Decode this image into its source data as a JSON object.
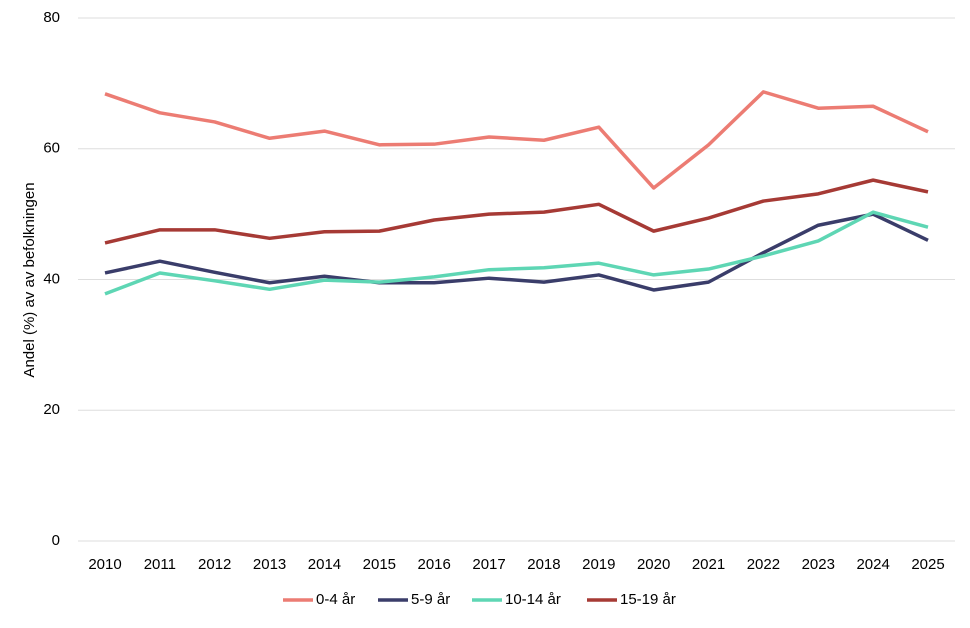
{
  "chart_data": {
    "type": "line",
    "y_label": "Andel (%) av av befolkningen",
    "categories": [
      "2010",
      "2011",
      "2012",
      "2013",
      "2014",
      "2015",
      "2016",
      "2017",
      "2018",
      "2019",
      "2020",
      "2021",
      "2022",
      "2023",
      "2024",
      "2025"
    ],
    "series": [
      {
        "name": "0-4 år",
        "color": "#ec7c73",
        "values": [
          68.4,
          65.5,
          64.1,
          61.6,
          62.7,
          60.6,
          60.7,
          61.8,
          61.3,
          63.3,
          54.0,
          60.6,
          68.7,
          66.2,
          66.5,
          62.6
        ]
      },
      {
        "name": "5-9 år",
        "color": "#3a3d6a",
        "values": [
          41.0,
          42.8,
          41.1,
          39.5,
          40.5,
          39.5,
          39.5,
          40.2,
          39.6,
          40.7,
          38.4,
          39.6,
          44.1,
          48.3,
          50.0,
          46.0
        ]
      },
      {
        "name": "10-14 år",
        "color": "#5ed6b4",
        "values": [
          37.8,
          41.0,
          39.8,
          38.5,
          39.9,
          39.6,
          40.4,
          41.5,
          41.8,
          42.5,
          40.7,
          41.6,
          43.6,
          45.9,
          50.3,
          48.0
        ]
      },
      {
        "name": "15-19 år",
        "color": "#a63a35",
        "values": [
          45.6,
          47.6,
          47.6,
          46.3,
          47.3,
          47.4,
          49.1,
          50.0,
          50.3,
          51.5,
          47.4,
          49.4,
          52.0,
          53.1,
          55.2,
          53.4
        ]
      }
    ],
    "ylim": [
      0,
      80
    ],
    "yticks": [
      0,
      20,
      40,
      60,
      80
    ],
    "grid": true,
    "legend": "bottom"
  }
}
